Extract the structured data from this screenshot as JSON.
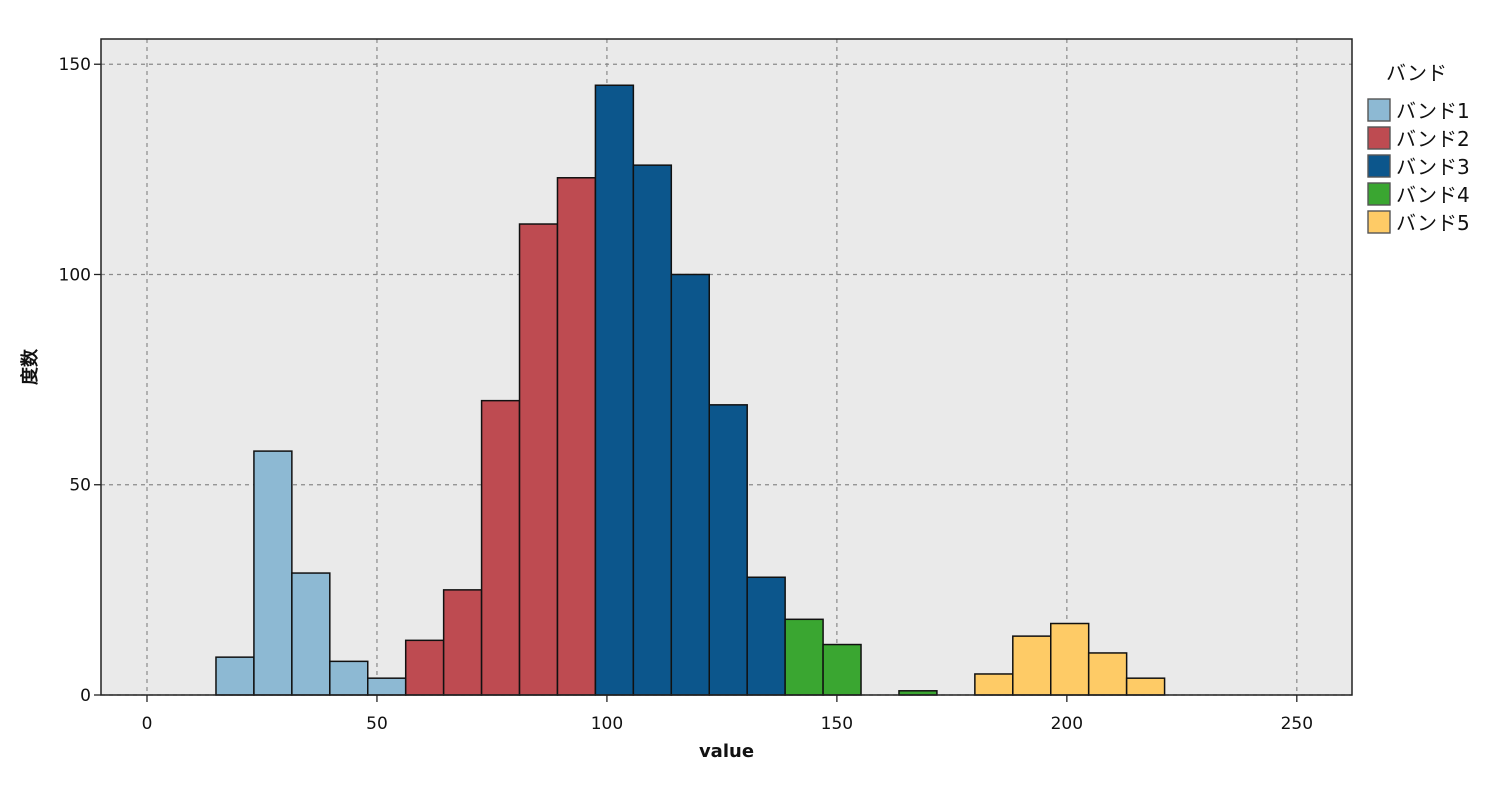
{
  "chart_data": {
    "type": "bar",
    "title": "",
    "xlabel": "value",
    "ylabel": "度数",
    "xlim": [
      -10,
      262
    ],
    "ylim": [
      0,
      156
    ],
    "x_ticks": [
      0,
      50,
      100,
      150,
      200,
      250
    ],
    "y_ticks": [
      0,
      50,
      100,
      150
    ],
    "grid": true,
    "legend_position": "right",
    "legend_title": "バンド",
    "series": [
      {
        "name": "バンド1",
        "color": "#8db9d3",
        "bins": [
          [
            15,
            23.25,
            9
          ],
          [
            23.25,
            31.5,
            58
          ],
          [
            31.5,
            39.75,
            29
          ],
          [
            39.75,
            48,
            8
          ],
          [
            48,
            56.25,
            4
          ]
        ]
      },
      {
        "name": "バンド2",
        "color": "#be4b51",
        "bins": [
          [
            56.25,
            64.5,
            13
          ],
          [
            64.5,
            72.75,
            25
          ],
          [
            72.75,
            81,
            70
          ],
          [
            81,
            89.25,
            112
          ],
          [
            89.25,
            97.5,
            123
          ]
        ]
      },
      {
        "name": "バンド3",
        "color": "#0c568c",
        "bins": [
          [
            97.5,
            105.75,
            145
          ],
          [
            105.75,
            114,
            126
          ],
          [
            114,
            122.25,
            100
          ],
          [
            122.25,
            130.5,
            69
          ],
          [
            130.5,
            138.75,
            28
          ]
        ]
      },
      {
        "name": "バンド4",
        "color": "#3aa631",
        "bins": [
          [
            138.75,
            147,
            18
          ],
          [
            147,
            155.25,
            12
          ],
          [
            163.5,
            171.75,
            1
          ]
        ]
      },
      {
        "name": "バンド5",
        "color": "#fecb66",
        "bins": [
          [
            180,
            188.25,
            5
          ],
          [
            188.25,
            196.5,
            14
          ],
          [
            196.5,
            204.75,
            17
          ],
          [
            204.75,
            213,
            10
          ],
          [
            213,
            221.25,
            4
          ]
        ]
      }
    ]
  }
}
